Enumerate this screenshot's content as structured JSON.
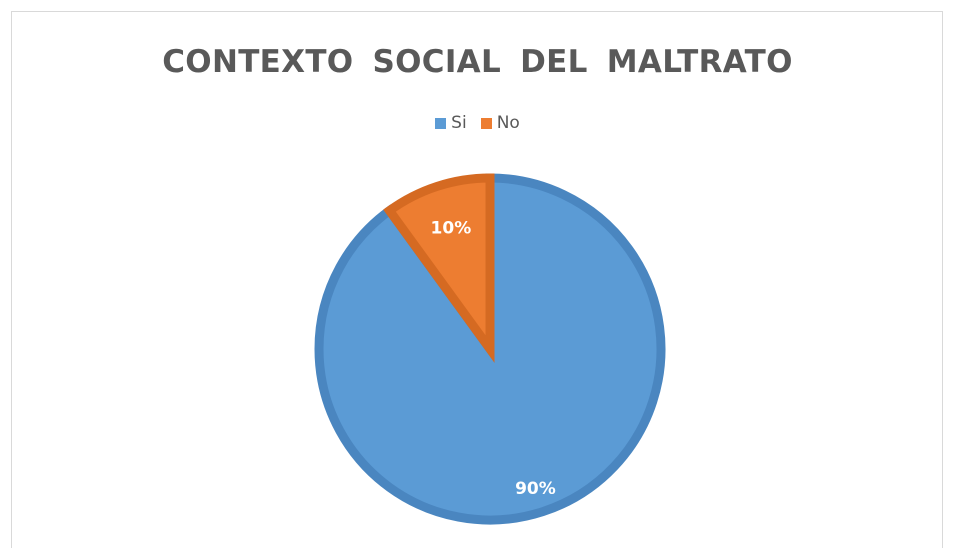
{
  "chart_data": {
    "type": "pie",
    "title": "CONTEXTO  SOCIAL  DEL  MALTRATO",
    "categories": [
      "Si",
      "No"
    ],
    "values": [
      90,
      10
    ],
    "data_labels": [
      "90%",
      "10%"
    ],
    "colors": [
      "#5b9bd5",
      "#ed7d31"
    ],
    "border_colors": [
      "#4a86c0",
      "#d56a22"
    ],
    "legend_position": "top",
    "start_angle_deg": 0,
    "direction": "clockwise"
  }
}
